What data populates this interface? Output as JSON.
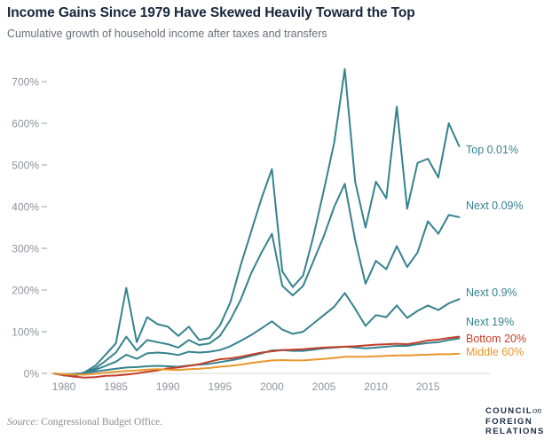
{
  "header": {
    "title": "Income Gains Since 1979 Have Skewed Heavily Toward the Top",
    "subtitle": "Cumulative growth of household income after taxes and transfers"
  },
  "footer": {
    "source_label": "Source:",
    "source_text": " Congressional Budget Office.",
    "logo_line1_word": "Council",
    "logo_line1_suffix": "on",
    "logo_line2": "Foreign",
    "logo_line3": "Relations"
  },
  "colors": {
    "teal": "#35828E",
    "red": "#C43E28",
    "orange": "#E9962D",
    "title_navy": "#17263C",
    "subtitle_gray": "#68707A",
    "axis_gray": "#8D939B",
    "baseline_gray": "#D9D9D9"
  },
  "chart_data": {
    "type": "line",
    "title": "Income Gains Since 1979 Have Skewed Heavily Toward the Top",
    "subtitle": "Cumulative growth of household income after taxes and transfers",
    "xlabel": "",
    "ylabel": "",
    "grid": false,
    "legend_position": "right-of-line-ends",
    "xlim": [
      1979,
      2018
    ],
    "ylim": [
      -15,
      740
    ],
    "xticks": [
      1980,
      1985,
      1990,
      1995,
      2000,
      2005,
      2010,
      2015
    ],
    "yticks": [
      0,
      100,
      200,
      300,
      400,
      500,
      600,
      700
    ],
    "ytick_suffix": "%",
    "x": [
      1979,
      1980,
      1981,
      1982,
      1983,
      1984,
      1985,
      1986,
      1987,
      1988,
      1989,
      1990,
      1991,
      1992,
      1993,
      1994,
      1995,
      1996,
      1997,
      1998,
      1999,
      2000,
      2001,
      2002,
      2003,
      2004,
      2005,
      2006,
      2007,
      2008,
      2009,
      2010,
      2011,
      2012,
      2013,
      2014,
      2015,
      2016,
      2017,
      2018
    ],
    "series": [
      {
        "name": "Top 0.01%",
        "color": "teal",
        "label_y": 169,
        "values": [
          0,
          -5,
          -7,
          3,
          18,
          45,
          72,
          205,
          75,
          135,
          118,
          112,
          90,
          112,
          80,
          85,
          115,
          170,
          260,
          340,
          420,
          490,
          245,
          207,
          235,
          330,
          440,
          555,
          730,
          460,
          350,
          460,
          420,
          640,
          395,
          505,
          515,
          470,
          600,
          545
        ]
      },
      {
        "name": "Next 0.09%",
        "color": "teal",
        "label_y": 232,
        "values": [
          0,
          -4,
          -5,
          2,
          12,
          30,
          50,
          88,
          55,
          80,
          75,
          70,
          62,
          80,
          68,
          72,
          90,
          128,
          177,
          240,
          290,
          335,
          210,
          187,
          210,
          270,
          330,
          400,
          455,
          320,
          215,
          270,
          250,
          305,
          255,
          290,
          365,
          335,
          380,
          375
        ]
      },
      {
        "name": "Next 0.9%",
        "color": "teal",
        "label_y": 330,
        "values": [
          0,
          -3,
          -3,
          2,
          8,
          18,
          28,
          45,
          35,
          48,
          50,
          48,
          44,
          52,
          50,
          52,
          56,
          65,
          78,
          92,
          108,
          125,
          105,
          95,
          100,
          120,
          140,
          160,
          193,
          155,
          114,
          140,
          135,
          163,
          133,
          150,
          163,
          152,
          168,
          178
        ]
      },
      {
        "name": "Next 19%",
        "color": "teal",
        "label_y": 363,
        "values": [
          0,
          -2,
          -1,
          1,
          4,
          8,
          11,
          14,
          15,
          17,
          18,
          17,
          16,
          19,
          21,
          23,
          27,
          31,
          36,
          42,
          48,
          55,
          56,
          54,
          54,
          57,
          60,
          62,
          64,
          62,
          60,
          62,
          64,
          66,
          66,
          70,
          73,
          75,
          80,
          84
        ]
      },
      {
        "name": "Bottom 20%",
        "color": "red",
        "label_y": 382,
        "values": [
          0,
          -4,
          -8,
          -10,
          -9,
          -6,
          -5,
          -3,
          0,
          4,
          7,
          12,
          14,
          18,
          22,
          28,
          34,
          36,
          40,
          45,
          50,
          53,
          56,
          57,
          58,
          60,
          62,
          63,
          64,
          65,
          67,
          69,
          70,
          71,
          70,
          74,
          79,
          81,
          85,
          88
        ]
      },
      {
        "name": "Middle 60%",
        "color": "orange",
        "label_y": 397,
        "values": [
          0,
          -2,
          -3,
          -3,
          -1,
          2,
          4,
          6,
          7,
          9,
          10,
          9,
          8,
          10,
          11,
          13,
          16,
          18,
          21,
          25,
          28,
          31,
          32,
          31,
          31,
          33,
          35,
          37,
          40,
          40,
          40,
          41,
          42,
          43,
          43,
          44,
          45,
          46,
          46,
          47
        ]
      }
    ]
  }
}
